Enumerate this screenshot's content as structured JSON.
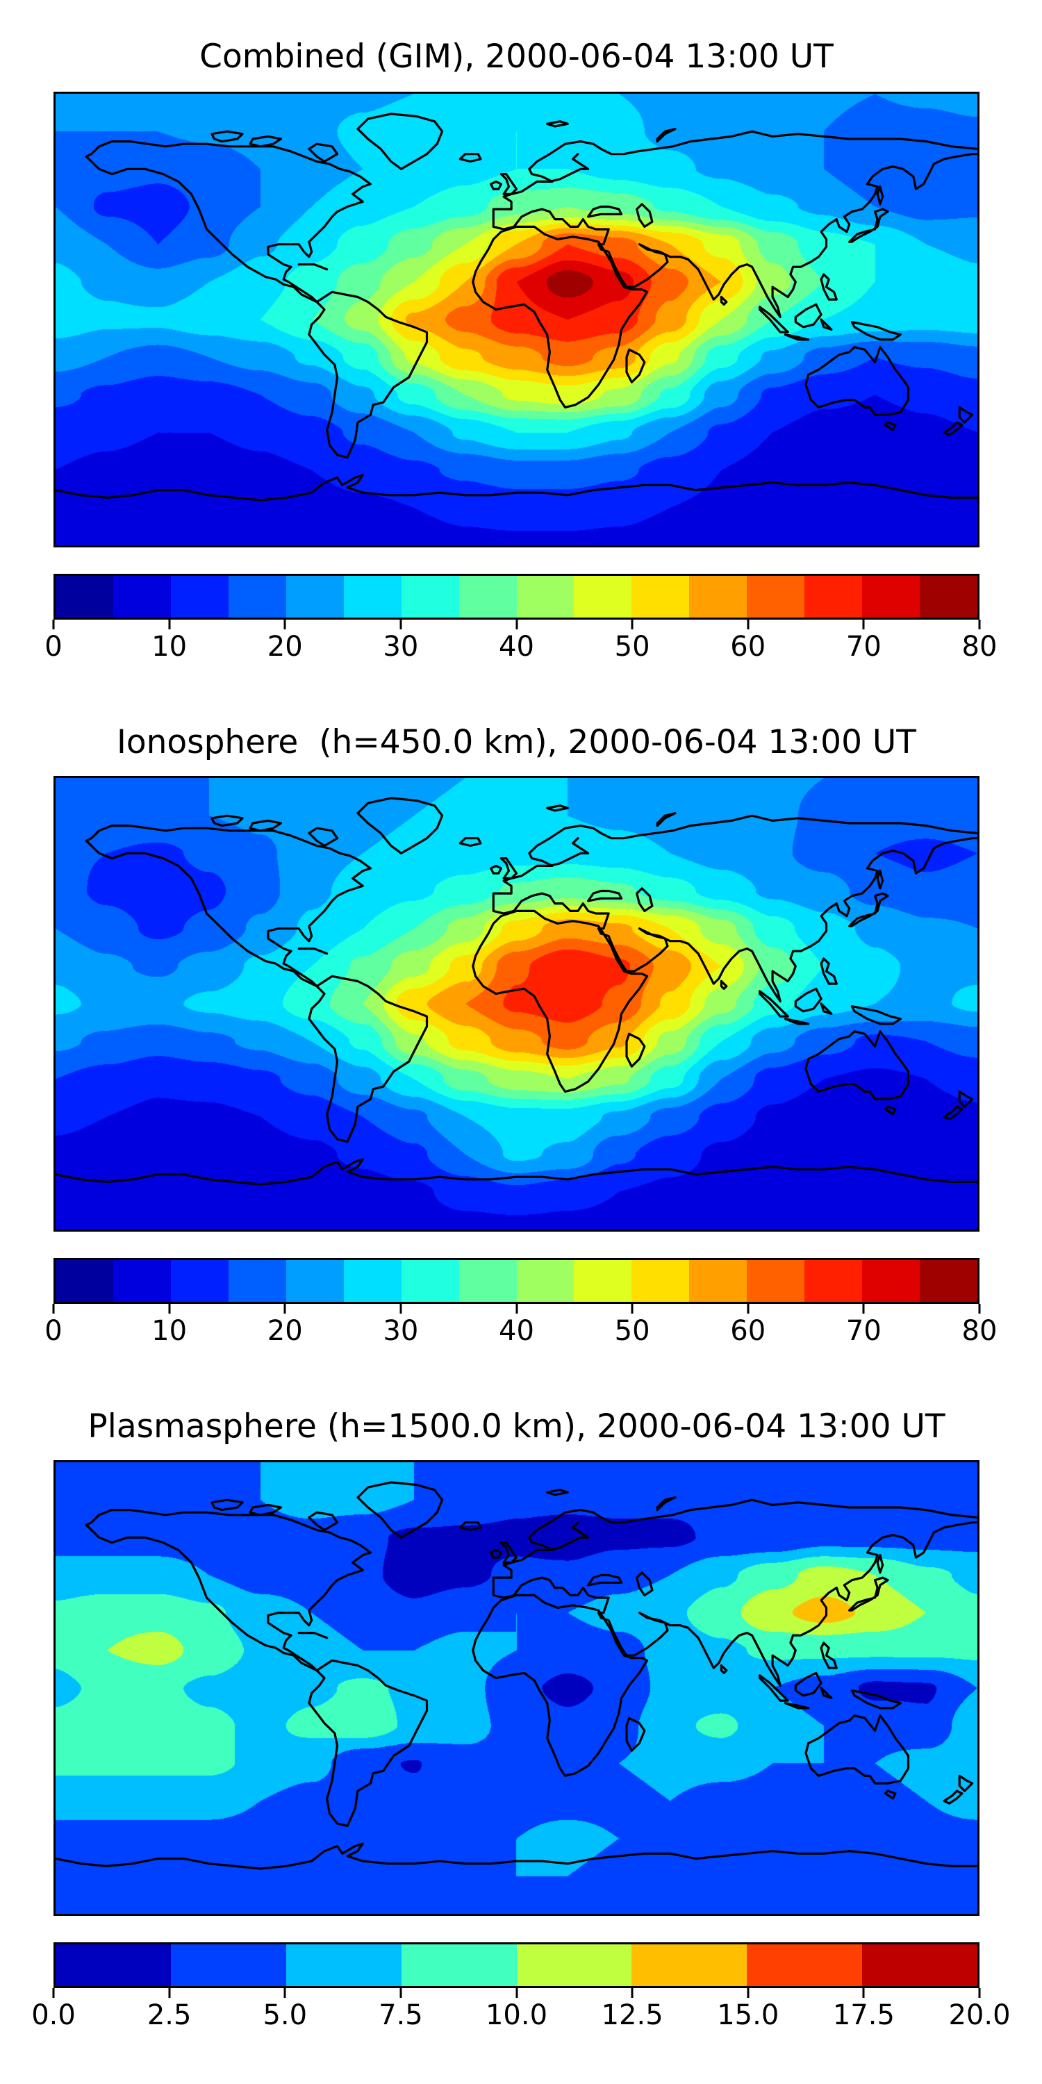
{
  "figure": {
    "background": "#ffffff",
    "panel_count": 3,
    "coastline_color": "#000000"
  },
  "chart_data": [
    {
      "type": "heatmap",
      "title": "Combined (GIM), 2000-06-04 13:00 UT",
      "colormap": "jet",
      "projection": "equirectangular",
      "lon_range": [
        -180,
        180
      ],
      "lat_range": [
        -90,
        90
      ],
      "colorbar": {
        "min": 0,
        "max": 80,
        "bands": 16,
        "tick_values": [
          0,
          10,
          20,
          30,
          40,
          50,
          60,
          70,
          80
        ],
        "tick_labels": [
          "0",
          "10",
          "20",
          "30",
          "40",
          "50",
          "60",
          "70",
          "80"
        ]
      },
      "grid": {
        "lons": [
          -180,
          -160,
          -140,
          -120,
          -100,
          -80,
          -60,
          -40,
          -20,
          0,
          20,
          40,
          60,
          80,
          100,
          120,
          140,
          160,
          180
        ],
        "lats": [
          90,
          75,
          60,
          45,
          30,
          15,
          0,
          -15,
          -30,
          -45,
          -60,
          -75,
          -90
        ],
        "values": [
          [
            22,
            22,
            22,
            22,
            22,
            23,
            24,
            25,
            26,
            26,
            26,
            25,
            24,
            23,
            22,
            21,
            20,
            21,
            22
          ],
          [
            20,
            20,
            20,
            21,
            22,
            24,
            26,
            28,
            30,
            30,
            28,
            26,
            24,
            23,
            22,
            20,
            18,
            18,
            19
          ],
          [
            18,
            17,
            16,
            17,
            20,
            23,
            25,
            26,
            28,
            30,
            30,
            28,
            26,
            24,
            22,
            20,
            16,
            15,
            16
          ],
          [
            20,
            14,
            13,
            16,
            20,
            25,
            28,
            30,
            33,
            38,
            40,
            38,
            34,
            30,
            26,
            24,
            20,
            18,
            19
          ],
          [
            24,
            20,
            15,
            18,
            24,
            28,
            32,
            38,
            45,
            55,
            65,
            62,
            55,
            48,
            38,
            32,
            30,
            25,
            24
          ],
          [
            26,
            24,
            22,
            25,
            28,
            32,
            38,
            45,
            55,
            70,
            78,
            72,
            62,
            55,
            42,
            35,
            30,
            28,
            26
          ],
          [
            28,
            26,
            26,
            28,
            30,
            35,
            42,
            56,
            62,
            68,
            70,
            68,
            58,
            45,
            35,
            30,
            28,
            27,
            28
          ],
          [
            22,
            20,
            18,
            20,
            22,
            26,
            32,
            46,
            54,
            58,
            62,
            58,
            46,
            32,
            24,
            18,
            15,
            16,
            18
          ],
          [
            16,
            14,
            12,
            13,
            15,
            18,
            24,
            32,
            40,
            46,
            48,
            44,
            34,
            22,
            14,
            11,
            10,
            11,
            13
          ],
          [
            12,
            11,
            10,
            10,
            11,
            13,
            16,
            20,
            26,
            30,
            30,
            26,
            20,
            14,
            10,
            8,
            8,
            9,
            10
          ],
          [
            10,
            9,
            8,
            8,
            9,
            10,
            12,
            14,
            16,
            18,
            18,
            16,
            13,
            10,
            8,
            7,
            7,
            8,
            9
          ],
          [
            8,
            8,
            7,
            7,
            8,
            8,
            9,
            10,
            11,
            12,
            12,
            11,
            10,
            9,
            8,
            7,
            7,
            7,
            8
          ],
          [
            7,
            7,
            7,
            7,
            7,
            7,
            8,
            8,
            9,
            9,
            9,
            9,
            8,
            8,
            7,
            7,
            7,
            7,
            7
          ]
        ]
      }
    },
    {
      "type": "heatmap",
      "title": "Ionosphere  (h=450.0 km), 2000-06-04 13:00 UT",
      "colormap": "jet",
      "projection": "equirectangular",
      "lon_range": [
        -180,
        180
      ],
      "lat_range": [
        -90,
        90
      ],
      "colorbar": {
        "min": 0,
        "max": 80,
        "bands": 16,
        "tick_values": [
          0,
          10,
          20,
          30,
          40,
          50,
          60,
          70,
          80
        ],
        "tick_labels": [
          "0",
          "10",
          "20",
          "30",
          "40",
          "50",
          "60",
          "70",
          "80"
        ]
      },
      "grid": {
        "lons": [
          -180,
          -160,
          -140,
          -120,
          -100,
          -80,
          -60,
          -40,
          -20,
          0,
          20,
          40,
          60,
          80,
          100,
          120,
          140,
          160,
          180
        ],
        "lats": [
          90,
          75,
          60,
          45,
          30,
          15,
          0,
          -15,
          -30,
          -45,
          -60,
          -75,
          -90
        ],
        "values": [
          [
            20,
            20,
            20,
            20,
            21,
            22,
            23,
            24,
            25,
            25,
            25,
            24,
            23,
            22,
            21,
            20,
            19,
            19,
            20
          ],
          [
            19,
            19,
            19,
            20,
            21,
            23,
            24,
            25,
            26,
            26,
            25,
            24,
            23,
            22,
            21,
            19,
            17,
            17,
            18
          ],
          [
            16,
            15,
            14,
            16,
            19,
            23,
            25,
            26,
            27,
            28,
            28,
            27,
            25,
            23,
            21,
            18,
            15,
            14,
            15
          ],
          [
            17,
            14,
            12,
            14,
            18,
            24,
            27,
            29,
            32,
            36,
            38,
            36,
            32,
            28,
            24,
            22,
            18,
            16,
            17
          ],
          [
            20,
            17,
            14,
            16,
            21,
            26,
            30,
            35,
            42,
            52,
            58,
            56,
            50,
            42,
            32,
            27,
            24,
            21,
            20
          ],
          [
            24,
            21,
            19,
            22,
            26,
            30,
            36,
            43,
            52,
            64,
            70,
            66,
            58,
            50,
            38,
            30,
            26,
            24,
            24
          ],
          [
            26,
            24,
            24,
            26,
            28,
            33,
            40,
            54,
            60,
            66,
            68,
            64,
            54,
            42,
            32,
            27,
            25,
            24,
            26
          ],
          [
            21,
            19,
            17,
            19,
            21,
            25,
            31,
            44,
            52,
            58,
            62,
            56,
            43,
            30,
            22,
            17,
            14,
            15,
            17
          ],
          [
            15,
            13,
            11,
            12,
            14,
            17,
            23,
            30,
            38,
            43,
            45,
            41,
            32,
            20,
            13,
            10,
            9,
            10,
            12
          ],
          [
            11,
            10,
            9,
            9,
            10,
            12,
            15,
            19,
            25,
            28,
            28,
            24,
            18,
            13,
            9,
            7,
            7,
            8,
            9
          ],
          [
            9,
            8,
            7,
            7,
            8,
            9,
            11,
            14,
            20,
            26,
            24,
            16,
            12,
            9,
            7,
            6,
            6,
            7,
            8
          ],
          [
            7,
            7,
            6,
            6,
            7,
            7,
            8,
            9,
            12,
            14,
            12,
            10,
            9,
            8,
            7,
            6,
            6,
            6,
            7
          ],
          [
            6,
            6,
            6,
            6,
            6,
            6,
            7,
            7,
            8,
            8,
            8,
            8,
            7,
            7,
            6,
            6,
            6,
            6,
            6
          ]
        ]
      }
    },
    {
      "type": "heatmap",
      "title": "Plasmasphere (h=1500.0 km), 2000-06-04 13:00 UT",
      "colormap": "jet",
      "projection": "equirectangular",
      "lon_range": [
        -180,
        180
      ],
      "lat_range": [
        -90,
        90
      ],
      "colorbar": {
        "min": 0,
        "max": 20,
        "bands": 8,
        "tick_values": [
          0,
          2.5,
          5,
          7.5,
          10,
          12.5,
          15,
          17.5,
          20
        ],
        "tick_labels": [
          "0.0",
          "2.5",
          "5.0",
          "7.5",
          "10.0",
          "12.5",
          "15.0",
          "17.5",
          "20.0"
        ]
      },
      "grid": {
        "lons": [
          -180,
          -160,
          -140,
          -120,
          -100,
          -80,
          -60,
          -40,
          -20,
          0,
          20,
          40,
          60,
          80,
          100,
          120,
          140,
          160,
          180
        ],
        "lats": [
          90,
          75,
          60,
          45,
          30,
          15,
          0,
          -15,
          -30,
          -45,
          -60,
          -75,
          -90
        ],
        "values": [
          [
            4,
            4,
            4,
            4,
            5,
            6,
            6,
            5,
            4,
            4,
            4,
            4,
            4,
            4,
            4,
            4,
            4,
            4,
            4
          ],
          [
            4,
            4,
            4,
            4,
            5,
            6,
            6,
            5,
            4,
            3,
            3,
            3,
            3,
            3,
            4,
            4,
            4,
            4,
            4
          ],
          [
            4,
            4,
            4,
            4,
            4,
            4,
            3,
            2,
            2,
            2,
            1.5,
            2,
            2,
            3,
            3,
            4,
            4,
            4,
            4
          ],
          [
            6,
            6,
            6,
            5,
            4,
            4,
            3,
            1.5,
            2,
            3,
            3,
            4,
            5,
            7,
            9,
            11,
            10,
            8,
            7
          ],
          [
            8,
            9,
            9,
            8,
            6,
            5,
            4,
            3,
            4,
            5,
            5,
            6,
            7,
            9,
            12,
            13.5,
            12,
            10,
            8
          ],
          [
            8,
            10,
            11,
            9,
            7,
            6,
            5,
            5,
            6,
            5,
            3.5,
            4,
            6,
            7,
            8,
            8,
            8,
            8,
            8
          ],
          [
            7,
            8,
            8,
            7,
            6,
            7,
            8,
            7,
            6,
            3,
            2,
            3,
            6,
            6,
            5,
            4,
            2,
            2.2,
            5
          ],
          [
            8,
            9,
            9,
            8,
            7,
            8,
            9,
            7,
            6,
            4,
            3,
            4,
            7,
            8,
            6,
            5,
            4,
            3,
            7
          ],
          [
            8,
            8,
            8,
            8,
            7,
            6,
            3,
            2.4,
            4,
            4,
            4,
            5,
            6,
            6,
            5,
            5,
            5,
            6,
            7
          ],
          [
            6,
            6,
            6,
            6,
            5,
            4,
            3,
            3,
            3,
            4,
            4,
            4,
            5,
            4,
            4,
            4,
            4,
            5,
            6
          ],
          [
            4,
            4,
            4,
            4,
            4,
            4,
            4,
            4,
            4,
            5,
            6,
            5,
            4,
            3,
            3,
            3,
            3,
            4,
            4
          ],
          [
            3,
            3,
            3,
            3,
            3,
            3,
            3,
            4,
            4,
            5,
            5,
            4,
            3,
            3,
            3,
            3,
            3,
            3,
            3
          ],
          [
            3,
            3,
            3,
            3,
            3,
            3,
            3,
            3,
            3,
            3,
            3,
            3,
            3,
            3,
            3,
            3,
            3,
            3,
            3
          ]
        ]
      }
    }
  ]
}
